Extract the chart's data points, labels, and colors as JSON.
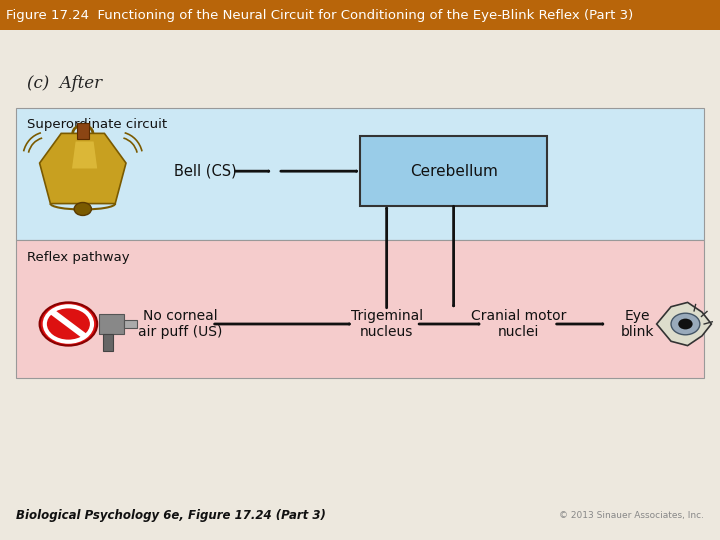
{
  "title": "Figure 17.24  Functioning of the Neural Circuit for Conditioning of the Eye-Blink Reflex (Part 3)",
  "title_bg": "#b8650a",
  "title_color": "#ffffff",
  "title_fontsize": 9.5,
  "bg_color": "#ede8de",
  "subtitle": "(c)  After",
  "subtitle_fontsize": 12,
  "superordinate_bg": "#cce8f5",
  "reflex_bg": "#f5cccc",
  "superordinate_label": "Superordinate circuit",
  "reflex_label": "Reflex pathway",
  "cerebellum_box_color": "#99cce8",
  "cerebellum_box_edge": "#333333",
  "cerebellum_text": "Cerebellum",
  "bell_cs_text": "Bell (CS)",
  "no_corneal_text": "No corneal\nair puff (US)",
  "trigeminal_text": "Trigeminal\nnucleus",
  "cranial_text": "Cranial motor\nnuclei",
  "eye_blink_text": "Eye\nblink",
  "footer_left": "Biological Psychology 6e, Figure 17.24 (Part 3)",
  "footer_right": "© 2013 Sinauer Associates, Inc.",
  "arrow_color": "#111111",
  "border_color": "#999999"
}
